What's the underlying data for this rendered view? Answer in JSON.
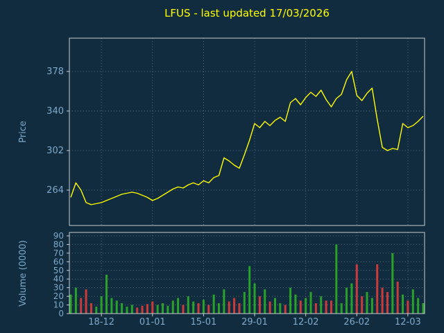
{
  "title": "LFUS - last updated 17/03/2026",
  "colors": {
    "background": "#112c3e",
    "title": "#ffff00",
    "axis_label": "#7da9cc",
    "tick_label": "#7da9cc",
    "spine": "#c9ced2",
    "grid": "#8fa6b5",
    "price_line": "#ffff00",
    "volume_up": "#2aa12a",
    "volume_down": "#cc3b3b"
  },
  "chart_data": [
    {
      "type": "line",
      "name": "price",
      "title": "LFUS - last updated 17/03/2026",
      "ylabel": "Price",
      "ylim": [
        230,
        410
      ],
      "yticks": [
        264,
        302,
        340,
        378
      ],
      "xtick_labels": [
        "18-12",
        "01-01",
        "15-01",
        "29-01",
        "12-02",
        "26-02",
        "12-03"
      ],
      "xtick_indices": [
        6,
        16,
        26,
        36,
        46,
        56,
        66
      ],
      "values": [
        257,
        271,
        264,
        252,
        250,
        251,
        252,
        254,
        256,
        258,
        260,
        261,
        262,
        261,
        259,
        257,
        254,
        256,
        259,
        262,
        265,
        267,
        266,
        269,
        271,
        269,
        273,
        271,
        276,
        278,
        295,
        292,
        288,
        285,
        298,
        312,
        328,
        324,
        330,
        326,
        331,
        334,
        330,
        348,
        352,
        346,
        353,
        358,
        354,
        360,
        351,
        344,
        352,
        356,
        370,
        378,
        355,
        350,
        357,
        362,
        332,
        305,
        302,
        304,
        303,
        328,
        324,
        326,
        330,
        335
      ]
    },
    {
      "type": "bar",
      "name": "volume",
      "ylabel": "Volume (0000)",
      "ylim": [
        0,
        94
      ],
      "yticks": [
        0,
        10,
        20,
        30,
        40,
        50,
        60,
        70,
        80,
        90
      ],
      "values": [
        22,
        30,
        18,
        28,
        12,
        8,
        20,
        45,
        18,
        15,
        12,
        8,
        10,
        7,
        9,
        11,
        14,
        10,
        12,
        9,
        15,
        18,
        10,
        20,
        14,
        12,
        16,
        10,
        22,
        12,
        28,
        14,
        18,
        12,
        25,
        55,
        35,
        20,
        28,
        14,
        18,
        12,
        10,
        30,
        22,
        15,
        18,
        25,
        12,
        20,
        15,
        15,
        80,
        12,
        30,
        35,
        57,
        20,
        25,
        18,
        57,
        30,
        25,
        70,
        37,
        22,
        15,
        28,
        18,
        12
      ],
      "bar_colors": [
        "g",
        "g",
        "r",
        "r",
        "r",
        "g",
        "g",
        "g",
        "g",
        "g",
        "g",
        "g",
        "g",
        "r",
        "r",
        "r",
        "r",
        "g",
        "g",
        "g",
        "g",
        "g",
        "r",
        "g",
        "g",
        "r",
        "g",
        "r",
        "g",
        "g",
        "g",
        "r",
        "r",
        "r",
        "g",
        "g",
        "g",
        "r",
        "g",
        "r",
        "g",
        "g",
        "r",
        "g",
        "g",
        "r",
        "g",
        "g",
        "r",
        "g",
        "r",
        "r",
        "g",
        "g",
        "g",
        "g",
        "r",
        "r",
        "g",
        "g",
        "r",
        "r",
        "r",
        "g",
        "r",
        "g",
        "r",
        "g",
        "g",
        "g"
      ]
    }
  ]
}
